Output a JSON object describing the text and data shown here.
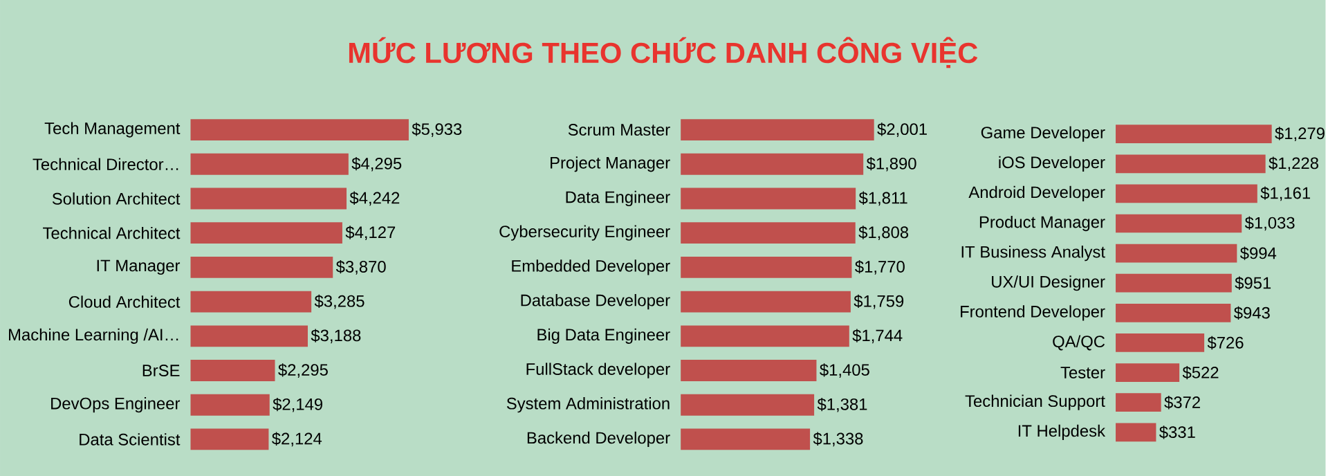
{
  "chart_data": [
    {
      "type": "bar",
      "orientation": "horizontal",
      "title": "MỨC LƯƠNG THEO CHỨC DANH CÔNG VIỆC",
      "color": "#c0504d",
      "categories": [
        "Tech Management",
        "Technical Director…",
        "Solution Architect",
        "Technical Architect",
        "IT Manager",
        "Cloud Architect",
        "Machine Learning /AI…",
        "BrSE",
        "DevOps Engineer",
        "Data Scientist"
      ],
      "values": [
        5933,
        4295,
        4242,
        4127,
        3870,
        3285,
        3188,
        2295,
        2149,
        2124
      ],
      "value_labels": [
        "$5,933",
        "$4,295",
        "$4,242",
        "$4,127",
        "$3,870",
        "$3,285",
        "$3,188",
        "$2,295",
        "$2,149",
        "$2,124"
      ]
    },
    {
      "type": "bar",
      "orientation": "horizontal",
      "color": "#c0504d",
      "categories": [
        "Scrum Master",
        "Project Manager",
        "Data Engineer",
        "Cybersecurity Engineer",
        "Embedded Developer",
        "Database Developer",
        "Big Data Engineer",
        "FullStack developer",
        "System Administration",
        "Backend Developer"
      ],
      "values": [
        2001,
        1890,
        1811,
        1808,
        1770,
        1759,
        1744,
        1405,
        1381,
        1338
      ],
      "value_labels": [
        "$2,001",
        "$1,890",
        "$1,811",
        "$1,808",
        "$1,770",
        "$1,759",
        "$1,744",
        "$1,405",
        "$1,381",
        "$1,338"
      ]
    },
    {
      "type": "bar",
      "orientation": "horizontal",
      "color": "#c0504d",
      "categories": [
        "Game Developer",
        "iOS Developer",
        "Android Developer",
        "Product Manager",
        "IT Business Analyst",
        "UX/UI Designer",
        "Frontend Developer",
        "QA/QC",
        "Tester",
        "Technician Support",
        "IT Helpdesk"
      ],
      "values": [
        1279,
        1228,
        1161,
        1033,
        994,
        951,
        943,
        726,
        522,
        372,
        331
      ],
      "value_labels": [
        "$1,279",
        "$1,228",
        "$1,161",
        "$1,033",
        "$994",
        "$951",
        "$943",
        "$726",
        "$522",
        "$372",
        "$331"
      ]
    }
  ]
}
